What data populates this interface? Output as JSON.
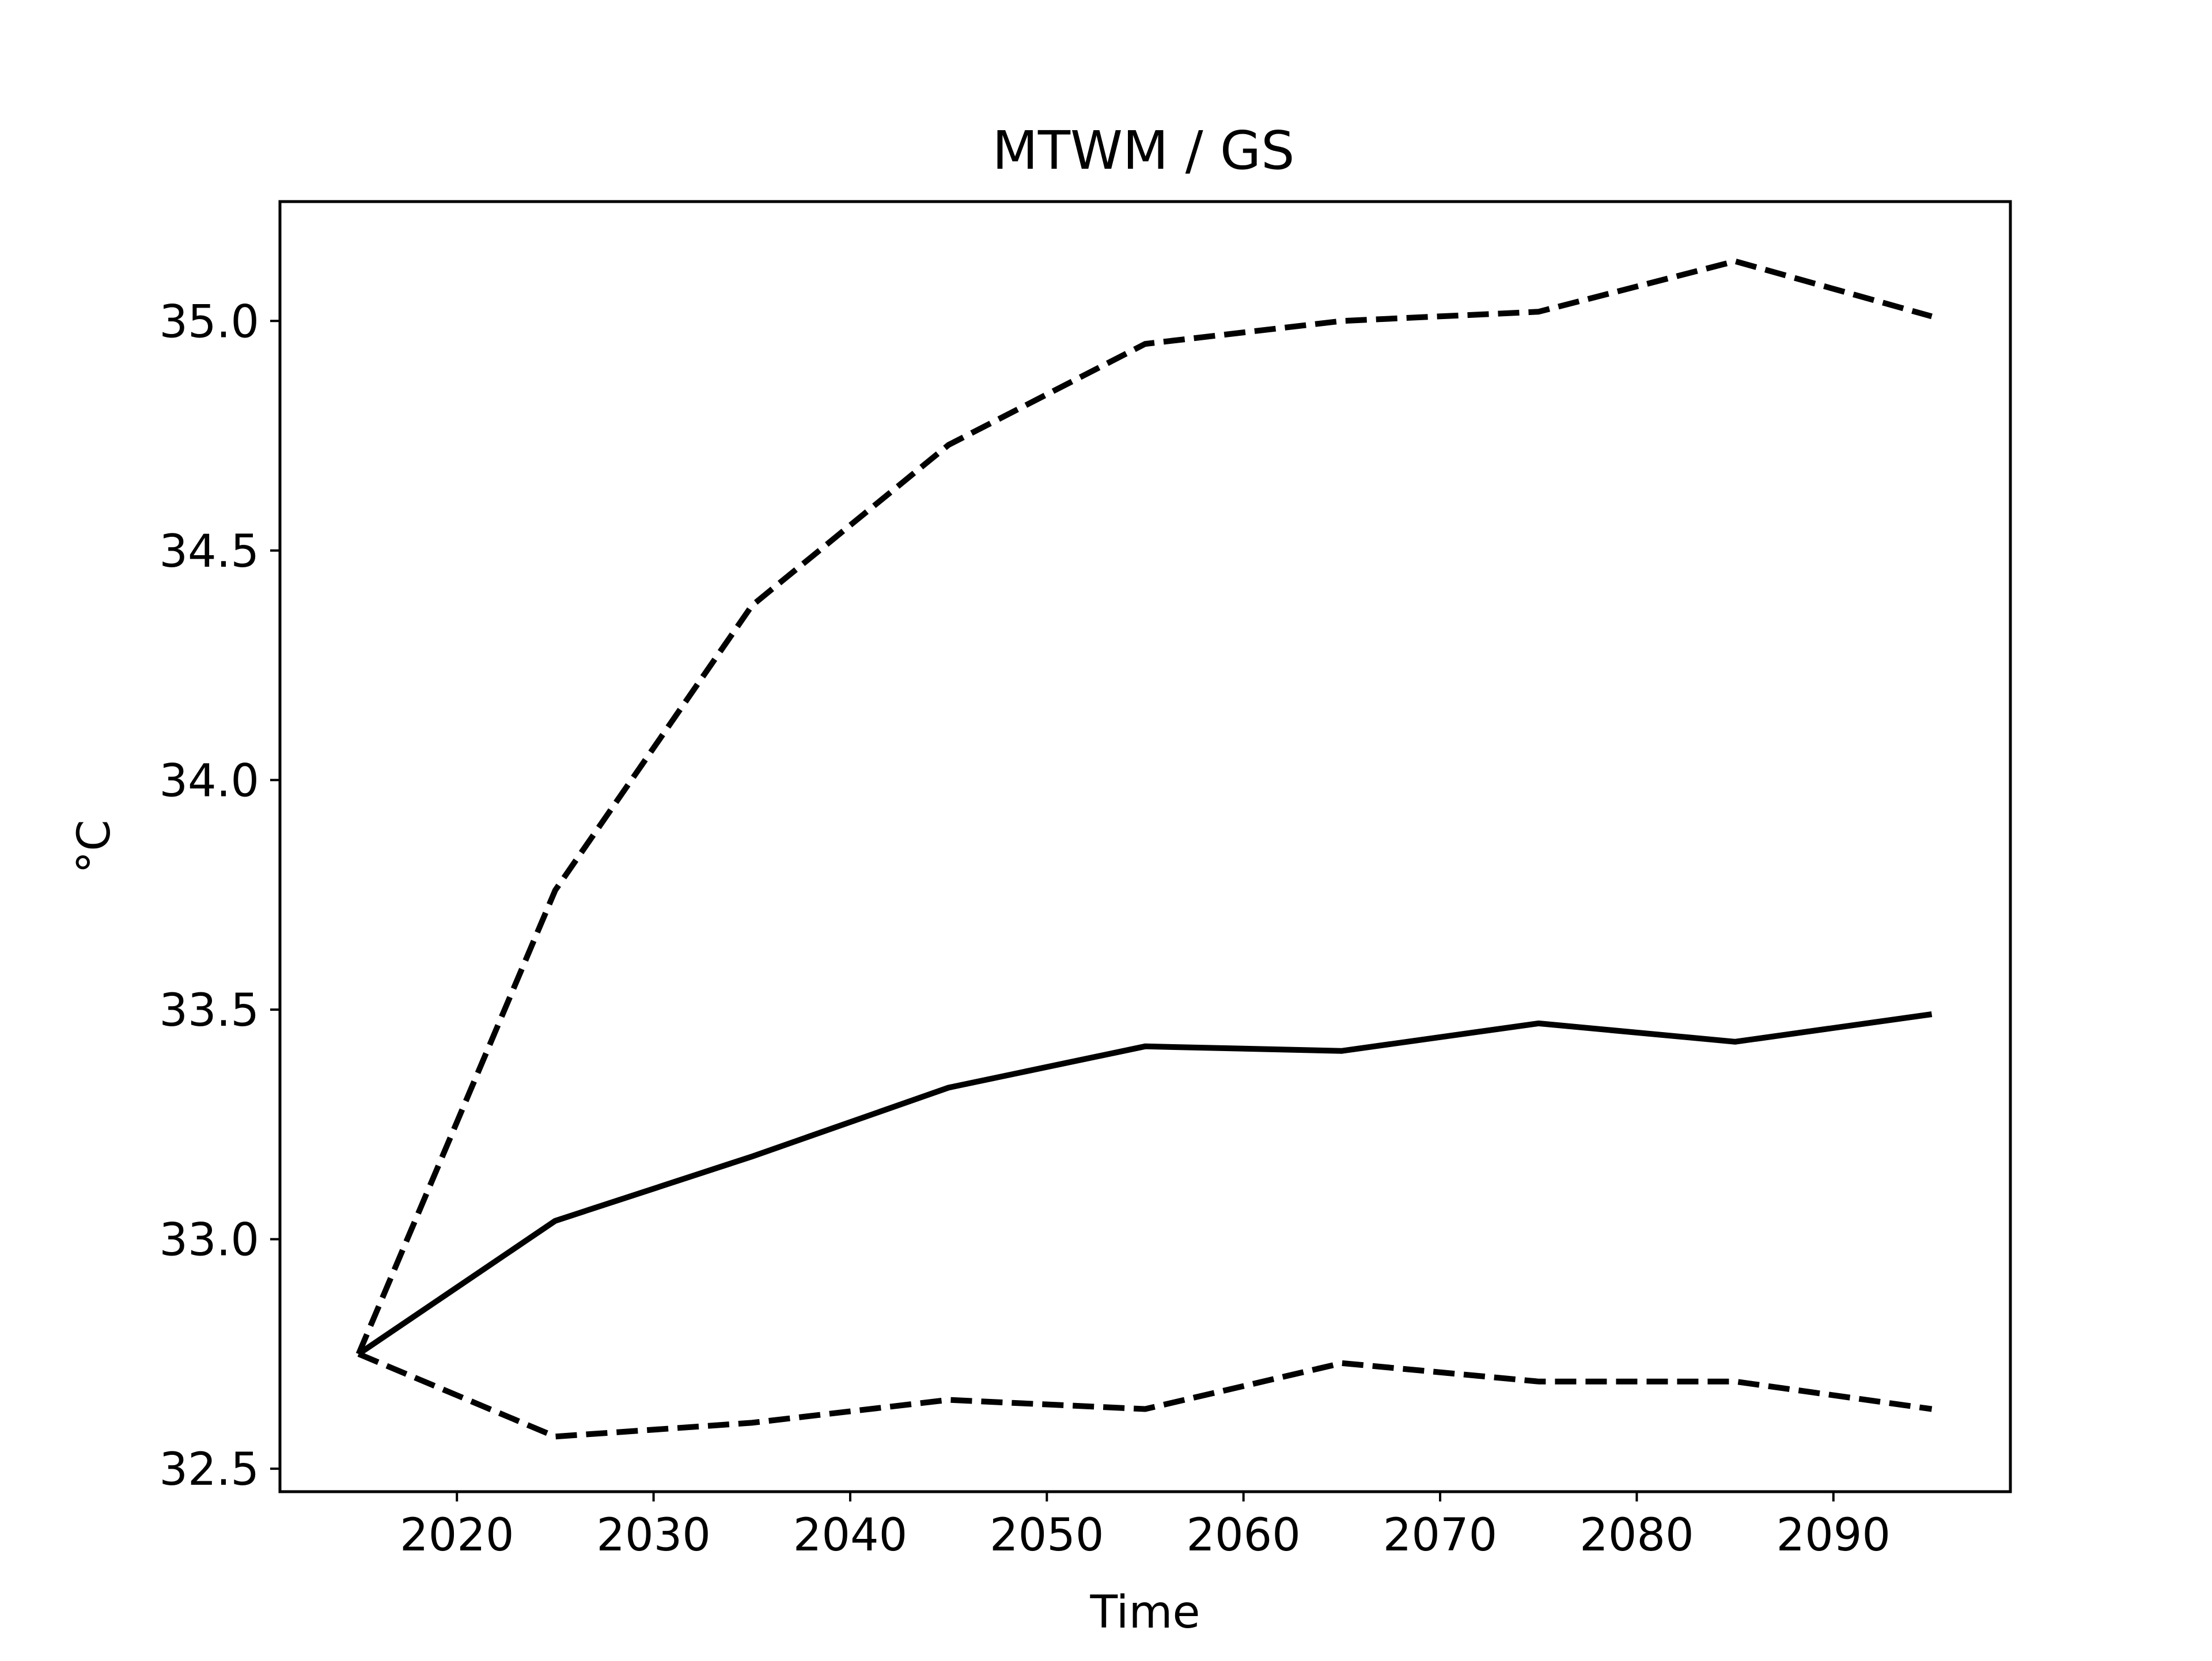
{
  "chart_data": {
    "type": "line",
    "title": "MTWM / GS",
    "xlabel": "Time",
    "ylabel": "°C",
    "xlim": [
      2011,
      2099
    ],
    "ylim": [
      32.45,
      35.26
    ],
    "xticks": [
      2020,
      2030,
      2040,
      2050,
      2060,
      2070,
      2080,
      2090
    ],
    "xtick_labels": [
      "2020",
      "2030",
      "2040",
      "2050",
      "2060",
      "2070",
      "2080",
      "2090"
    ],
    "yticks": [
      32.5,
      33.0,
      33.5,
      34.0,
      34.5,
      35.0
    ],
    "ytick_labels": [
      "32.5",
      "33.0",
      "33.5",
      "34.0",
      "34.5",
      "35.0"
    ],
    "grid": false,
    "x": [
      2015,
      2025,
      2035,
      2045,
      2055,
      2065,
      2075,
      2085,
      2095
    ],
    "series": [
      {
        "style": "dashed",
        "color": "#000000",
        "values": [
          32.75,
          33.76,
          34.38,
          34.73,
          34.95,
          35.0,
          35.02,
          35.13,
          35.01
        ]
      },
      {
        "style": "solid",
        "color": "#000000",
        "values": [
          32.75,
          33.04,
          33.18,
          33.33,
          33.42,
          33.41,
          33.47,
          33.43,
          33.49
        ]
      },
      {
        "style": "dashed",
        "color": "#000000",
        "values": [
          32.75,
          32.57,
          32.6,
          32.65,
          32.63,
          32.73,
          32.69,
          32.69,
          32.63
        ]
      }
    ]
  }
}
